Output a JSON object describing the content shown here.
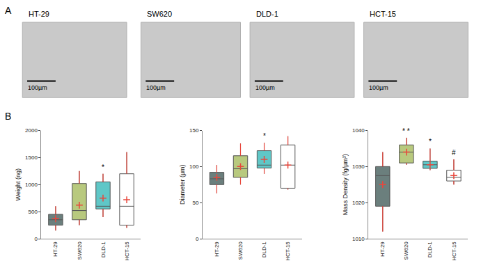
{
  "panel_a": {
    "label": "A",
    "images": [
      {
        "title": "HT-29",
        "scale_bar": "100µm"
      },
      {
        "title": "SW620",
        "scale_bar": "100µm"
      },
      {
        "title": "DLD-1",
        "scale_bar": "100µm"
      },
      {
        "title": "HCT-15",
        "scale_bar": "100µm"
      }
    ]
  },
  "panel_b_label": "B",
  "chart_data": [
    {
      "type": "box",
      "y_label": "Weight (ng)",
      "categories": [
        "HT-29",
        "SW620",
        "DLD-1",
        "HCT-15"
      ],
      "colors": [
        "#6b7f7d",
        "#b8c97e",
        "#5fc7c7",
        "#ffffff"
      ],
      "ylim": [
        0,
        2000
      ],
      "yticks": [
        0,
        500,
        1000,
        1500,
        2000
      ],
      "q1": [
        250,
        350,
        550,
        250
      ],
      "median": [
        350,
        520,
        600,
        600
      ],
      "q3": [
        450,
        1020,
        1050,
        1200
      ],
      "lower_whisker": [
        150,
        250,
        400,
        200
      ],
      "upper_whisker": [
        600,
        1250,
        1200,
        1600
      ],
      "mean": [
        370,
        620,
        750,
        720
      ],
      "significance": [
        null,
        null,
        "*",
        null
      ]
    },
    {
      "type": "box",
      "y_label": "Diameter (µm)",
      "categories": [
        "HT-29",
        "SW620",
        "DLD-1",
        "HCT-15"
      ],
      "colors": [
        "#6b7f7d",
        "#b8c97e",
        "#5fc7c7",
        "#ffffff"
      ],
      "ylim": [
        0,
        150
      ],
      "yticks": [
        0,
        50,
        100,
        150
      ],
      "q1": [
        75,
        85,
        98,
        70
      ],
      "median": [
        83,
        97,
        102,
        102
      ],
      "q3": [
        92,
        115,
        122,
        130
      ],
      "lower_whisker": [
        63,
        75,
        90,
        68
      ],
      "upper_whisker": [
        102,
        132,
        133,
        142
      ],
      "mean": [
        85,
        100,
        110,
        102
      ],
      "significance": [
        null,
        null,
        "*",
        null
      ]
    },
    {
      "type": "box",
      "y_label": "Mass Density (fg/µm³)",
      "categories": [
        "HT-29",
        "SW620",
        "DLD-1",
        "HCT-15"
      ],
      "colors": [
        "#6b7f7d",
        "#b8c97e",
        "#5fc7c7",
        "#ffffff"
      ],
      "ylim": [
        1010,
        1040
      ],
      "yticks": [
        1010,
        1020,
        1030,
        1040
      ],
      "q1": [
        1019,
        1031,
        1029.5,
        1026
      ],
      "median": [
        1027.5,
        1034,
        1030.5,
        1027
      ],
      "q3": [
        1030,
        1036,
        1031.5,
        1029
      ],
      "lower_whisker": [
        1012,
        1030.5,
        1029,
        1025
      ],
      "upper_whisker": [
        1034,
        1038,
        1035,
        1032
      ],
      "mean": [
        1025,
        1034,
        1030.5,
        1027.5
      ],
      "significance": [
        null,
        "* *",
        "*",
        "#"
      ]
    }
  ]
}
